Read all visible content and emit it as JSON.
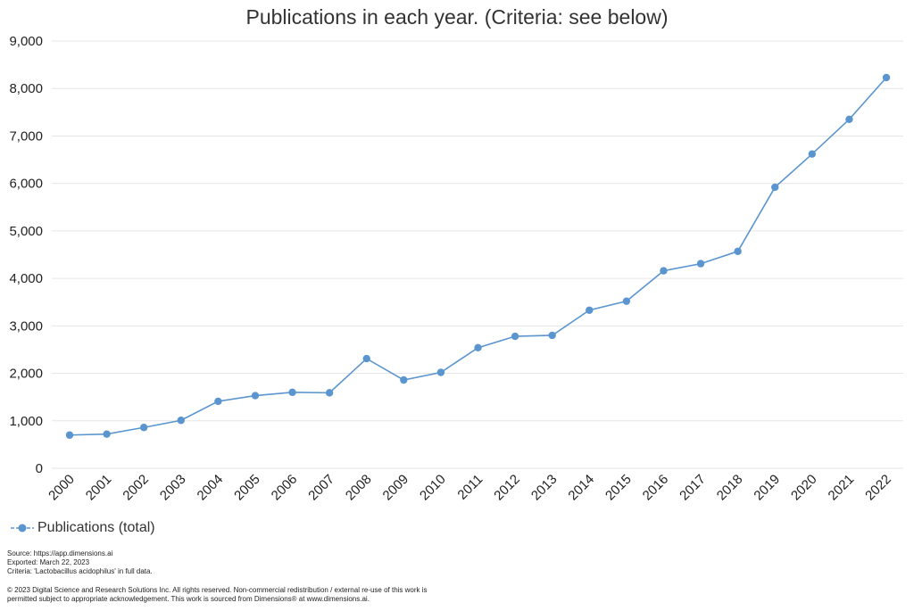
{
  "chart_data": {
    "type": "line",
    "title": "Publications in each year. (Criteria: see below)",
    "x": [
      "2000",
      "2001",
      "2002",
      "2003",
      "2004",
      "2005",
      "2006",
      "2007",
      "2008",
      "2009",
      "2010",
      "2011",
      "2012",
      "2013",
      "2014",
      "2015",
      "2016",
      "2017",
      "2018",
      "2019",
      "2020",
      "2021",
      "2022"
    ],
    "series": [
      {
        "name": "Publications (total)",
        "color": "#5b95cf",
        "values": [
          700,
          720,
          860,
          1010,
          1410,
          1530,
          1600,
          1590,
          2310,
          1860,
          2020,
          2540,
          2780,
          2800,
          3330,
          3520,
          4160,
          4310,
          4570,
          5920,
          6620,
          7350,
          8230
        ]
      }
    ],
    "ylim": [
      0,
      9000
    ],
    "yticks": [
      0,
      1000,
      2000,
      3000,
      4000,
      5000,
      6000,
      7000,
      8000,
      9000
    ],
    "ytick_labels": [
      "0",
      "1,000",
      "2,000",
      "3,000",
      "4,000",
      "5,000",
      "6,000",
      "7,000",
      "8,000",
      "9,000"
    ],
    "grid": true,
    "legend_position": "bottom-left"
  },
  "legend": {
    "label": "Publications (total)"
  },
  "footer": {
    "source": "Source: https://app.dimensions.ai",
    "exported": "Exported: March 22, 2023",
    "criteria": "Criteria: 'Lactobacillus acidophilus' in full data.",
    "copyright_line1": "© 2023 Digital Science and Research Solutions Inc. All rights reserved. Non-commercial redistribution / external re-use of this work is",
    "copyright_line2": "permitted subject to appropriate acknowledgement. This work is sourced from Dimensions® at www.dimensions.ai."
  }
}
